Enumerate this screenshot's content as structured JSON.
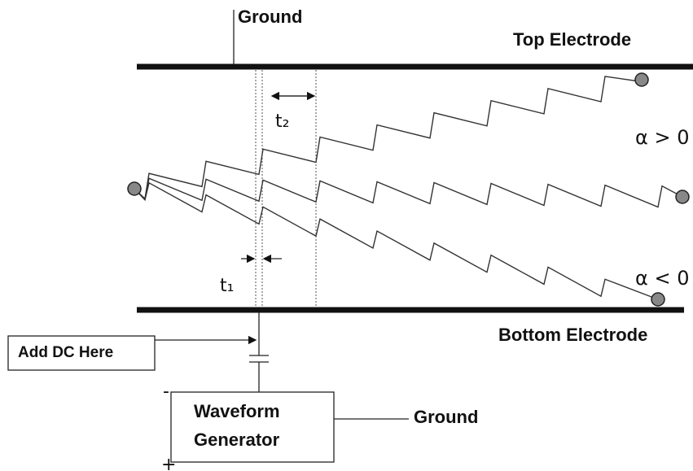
{
  "labels": {
    "ground_top": "Ground",
    "top_electrode": "Top Electrode",
    "alpha_pos": "α > 0",
    "alpha_neg": "α < 0",
    "t2": "t₂",
    "t1": "t₁",
    "bottom_electrode": "Bottom Electrode",
    "add_dc": "Add DC Here",
    "generator": [
      "Waveform",
      "Generator"
    ],
    "ground_right": "Ground",
    "minus": "-",
    "plus": "+"
  }
}
